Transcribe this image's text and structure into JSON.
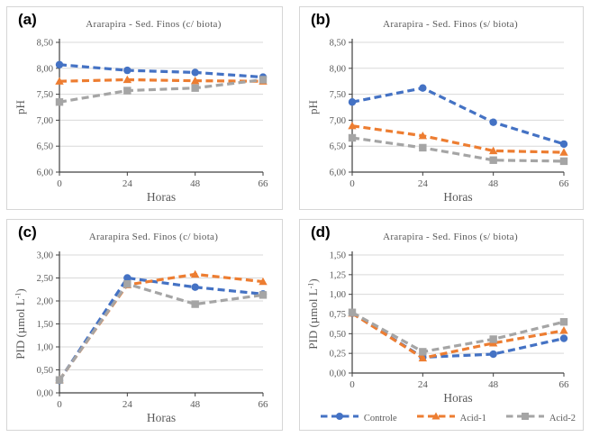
{
  "figure": {
    "xlabel": "Horas",
    "decimal_separator": ",",
    "legend": {
      "position": "bottom-right-of-panel-d",
      "items": [
        "Controle",
        "Acid-1",
        "Acid-2"
      ]
    }
  },
  "chart_data": [
    {
      "type": "line",
      "panel_label": "(a)",
      "title": "Ararapira - Sed. Finos (c/ biota)",
      "xlabel": "Horas",
      "ylabel": "pH",
      "ylabel_parts": {
        "pre": "pH",
        "sup": "",
        "post": ""
      },
      "ylim": [
        6.0,
        8.5
      ],
      "ytick_step": 0.5,
      "tick_decimals": 2,
      "grid": "horizontal",
      "legend_visible": false,
      "categories": [
        0,
        24,
        48,
        66
      ],
      "series": [
        {
          "name": "Controle",
          "color": "#4472C4",
          "marker": "circle",
          "line_style": "dashed",
          "values": [
            8.07,
            7.96,
            7.92,
            7.83
          ]
        },
        {
          "name": "Acid-1",
          "color": "#ED7D31",
          "marker": "triangle",
          "line_style": "dashed",
          "values": [
            7.75,
            7.78,
            7.76,
            7.75
          ]
        },
        {
          "name": "Acid-2",
          "color": "#A5A5A5",
          "marker": "square",
          "line_style": "dashed",
          "values": [
            7.35,
            7.57,
            7.62,
            7.78
          ]
        }
      ]
    },
    {
      "type": "line",
      "panel_label": "(b)",
      "title": "Ararapira - Sed. Finos (s/ biota)",
      "xlabel": "Horas",
      "ylabel": "pH",
      "ylabel_parts": {
        "pre": "pH",
        "sup": "",
        "post": ""
      },
      "ylim": [
        6.0,
        8.5
      ],
      "ytick_step": 0.5,
      "tick_decimals": 2,
      "grid": "horizontal",
      "legend_visible": false,
      "categories": [
        0,
        24,
        48,
        66
      ],
      "series": [
        {
          "name": "Controle",
          "color": "#4472C4",
          "marker": "circle",
          "line_style": "dashed",
          "values": [
            7.35,
            7.62,
            6.96,
            6.54
          ]
        },
        {
          "name": "Acid-1",
          "color": "#ED7D31",
          "marker": "triangle",
          "line_style": "dashed",
          "values": [
            6.89,
            6.7,
            6.41,
            6.38
          ]
        },
        {
          "name": "Acid-2",
          "color": "#A5A5A5",
          "marker": "square",
          "line_style": "dashed",
          "values": [
            6.66,
            6.47,
            6.23,
            6.21
          ]
        }
      ]
    },
    {
      "type": "line",
      "panel_label": "(c)",
      "title": "Ararapira Sed. Finos (c/ biota)",
      "xlabel": "Horas",
      "ylabel": "PID (µmol L-1)",
      "ylabel_parts": {
        "pre": "PID (µmol L",
        "sup": "-1",
        "post": ")"
      },
      "ylim": [
        0.0,
        3.0
      ],
      "ytick_step": 0.5,
      "tick_decimals": 2,
      "grid": "horizontal",
      "legend_visible": false,
      "categories": [
        0,
        24,
        48,
        66
      ],
      "series": [
        {
          "name": "Controle",
          "color": "#4472C4",
          "marker": "circle",
          "line_style": "dashed",
          "values": [
            0.27,
            2.5,
            2.3,
            2.15
          ]
        },
        {
          "name": "Acid-1",
          "color": "#ED7D31",
          "marker": "triangle",
          "line_style": "dashed",
          "values": [
            0.28,
            2.35,
            2.58,
            2.42
          ]
        },
        {
          "name": "Acid-2",
          "color": "#A5A5A5",
          "marker": "square",
          "line_style": "dashed",
          "values": [
            0.28,
            2.37,
            1.93,
            2.13
          ]
        }
      ]
    },
    {
      "type": "line",
      "panel_label": "(d)",
      "title": "Ararapira - Sed. Finos (s/ biota)",
      "xlabel": "Horas",
      "ylabel": "PID (µmol L-1)",
      "ylabel_parts": {
        "pre": "PID (µmol L",
        "sup": "-1",
        "post": ")"
      },
      "ylim": [
        0.0,
        1.5
      ],
      "ytick_step": 0.25,
      "tick_decimals": 2,
      "grid": "horizontal",
      "legend_visible": true,
      "categories": [
        0,
        24,
        48,
        66
      ],
      "series": [
        {
          "name": "Controle",
          "color": "#4472C4",
          "marker": "circle",
          "line_style": "dashed",
          "values": [
            0.76,
            0.2,
            0.24,
            0.44
          ]
        },
        {
          "name": "Acid-1",
          "color": "#ED7D31",
          "marker": "triangle",
          "line_style": "dashed",
          "values": [
            0.76,
            0.19,
            0.38,
            0.54
          ]
        },
        {
          "name": "Acid-2",
          "color": "#A5A5A5",
          "marker": "square",
          "line_style": "dashed",
          "values": [
            0.77,
            0.27,
            0.43,
            0.65
          ]
        }
      ]
    }
  ]
}
